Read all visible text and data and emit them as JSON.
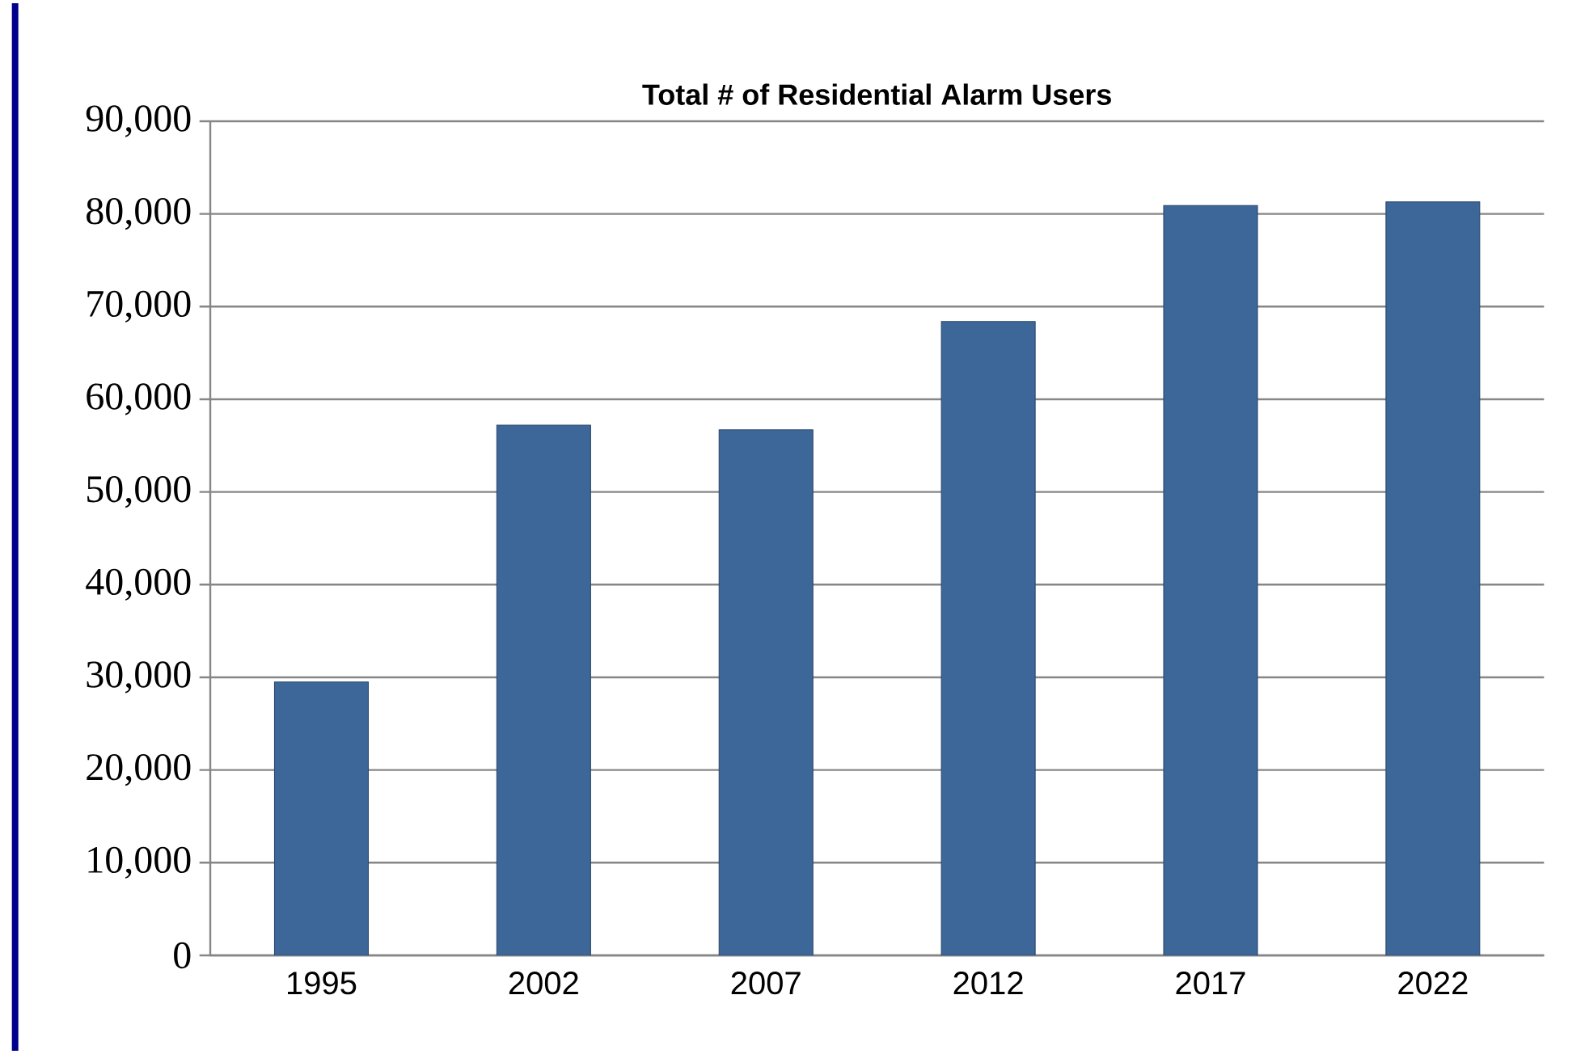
{
  "chart_data": {
    "type": "bar",
    "title": "Total # of Residential Alarm Users",
    "categories": [
      "1995",
      "2002",
      "2007",
      "2012",
      "2017",
      "2022"
    ],
    "values": [
      29500,
      57200,
      56700,
      68400,
      80900,
      81300
    ],
    "color": "#3d6699",
    "ylim": [
      0,
      90000
    ],
    "yticks": [
      {
        "value": 0,
        "label": "0"
      },
      {
        "value": 10000,
        "label": "10,000"
      },
      {
        "value": 20000,
        "label": "20,000"
      },
      {
        "value": 30000,
        "label": "30,000"
      },
      {
        "value": 40000,
        "label": "40,000"
      },
      {
        "value": 50000,
        "label": "50,000"
      },
      {
        "value": 60000,
        "label": "60,000"
      },
      {
        "value": 70000,
        "label": "70,000"
      },
      {
        "value": 80000,
        "label": "80,000"
      },
      {
        "value": 90000,
        "label": "90,000"
      }
    ],
    "grid": "y"
  }
}
